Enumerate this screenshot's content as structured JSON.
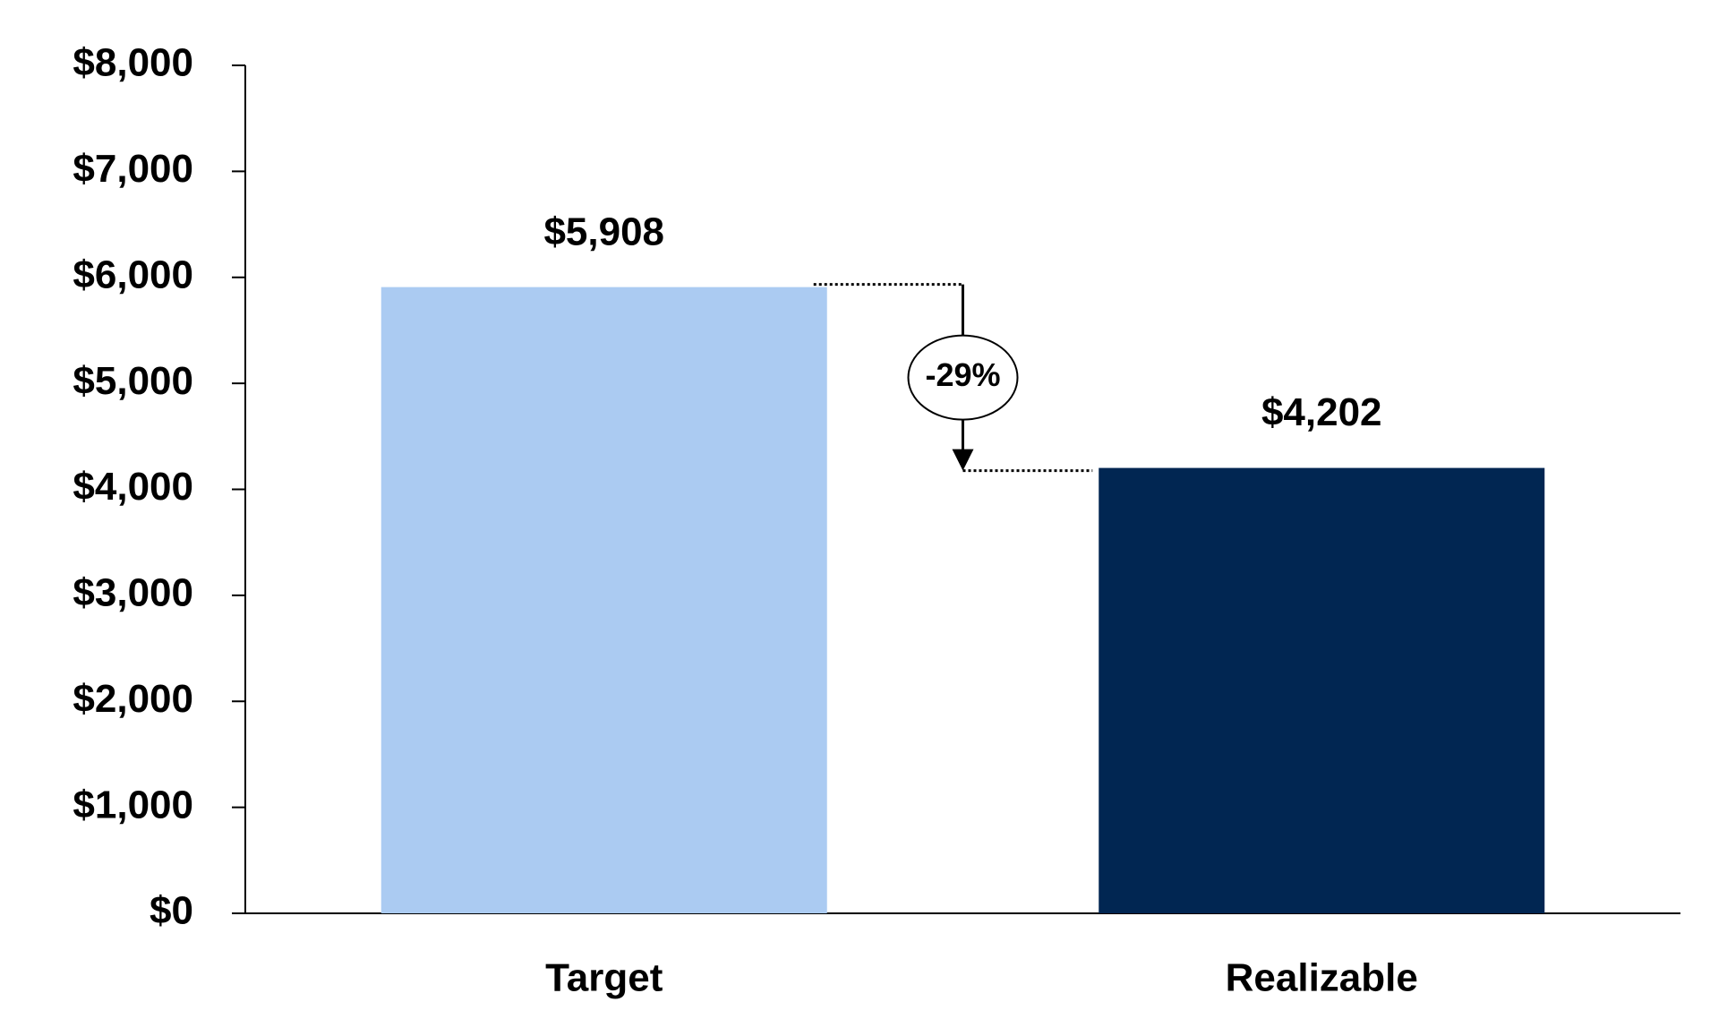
{
  "chart_data": {
    "type": "bar",
    "categories": [
      "Target",
      "Realizable"
    ],
    "values": [
      5908,
      4202
    ],
    "value_labels": [
      "$5,908",
      "$4,202"
    ],
    "colors": [
      "#abcbf2",
      "#012652"
    ],
    "annotation": "-29%",
    "ylim": [
      0,
      8000
    ],
    "yticks": [
      {
        "value": 0,
        "label": "$0"
      },
      {
        "value": 1000,
        "label": "$1,000"
      },
      {
        "value": 2000,
        "label": "$2,000"
      },
      {
        "value": 3000,
        "label": "$3,000"
      },
      {
        "value": 4000,
        "label": "$4,000"
      },
      {
        "value": 5000,
        "label": "$5,000"
      },
      {
        "value": 6000,
        "label": "$6,000"
      },
      {
        "value": 7000,
        "label": "$7,000"
      },
      {
        "value": 8000,
        "label": "$8,000"
      }
    ],
    "grid": false
  }
}
